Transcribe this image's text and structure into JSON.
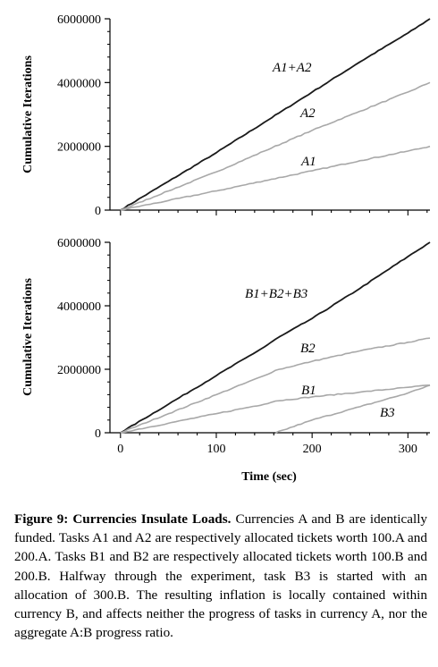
{
  "chart_data": [
    {
      "type": "line",
      "title": "",
      "xlabel": "",
      "ylabel": "Cumulative Iterations",
      "xlim": [
        -11,
        323
      ],
      "ylim": [
        0,
        6000000
      ],
      "yticks": [
        "0",
        "2000000",
        "4000000",
        "6000000"
      ],
      "show_x_tick_labels": false,
      "grid": false,
      "series": [
        {
          "name": "A1+A2",
          "color": "#1a1a1a",
          "x": [
            0,
            50,
            100,
            150,
            200,
            250,
            300,
            323
          ],
          "y": [
            0,
            900000,
            1800000,
            2750000,
            3700000,
            4650000,
            5550000,
            6000000
          ]
        },
        {
          "name": "A2",
          "color": "#a8a8a8",
          "x": [
            0,
            50,
            100,
            150,
            200,
            250,
            300,
            323
          ],
          "y": [
            0,
            600000,
            1200000,
            1850000,
            2500000,
            3100000,
            3700000,
            4000000
          ]
        },
        {
          "name": "A1",
          "color": "#a8a8a8",
          "x": [
            0,
            50,
            100,
            150,
            200,
            250,
            300,
            323
          ],
          "y": [
            0,
            300000,
            600000,
            920000,
            1230000,
            1550000,
            1850000,
            2000000
          ]
        }
      ],
      "annotations": [
        "A1+A2",
        "A2",
        "A1"
      ]
    },
    {
      "type": "line",
      "title": "",
      "xlabel": "Time (sec)",
      "ylabel": "Cumulative Iterations",
      "xlim": [
        -11,
        323
      ],
      "ylim": [
        0,
        6000000
      ],
      "xticks": [
        "0",
        "100",
        "200",
        "300"
      ],
      "yticks": [
        "0",
        "2000000",
        "4000000",
        "6000000"
      ],
      "grid": false,
      "series": [
        {
          "name": "B1+B2+B3",
          "color": "#1a1a1a",
          "x": [
            0,
            50,
            100,
            150,
            162,
            200,
            250,
            300,
            323
          ],
          "y": [
            0,
            900000,
            1800000,
            2700000,
            2950000,
            3600000,
            4550000,
            5550000,
            6000000
          ]
        },
        {
          "name": "B2",
          "color": "#a8a8a8",
          "x": [
            0,
            50,
            100,
            150,
            162,
            200,
            250,
            300,
            323
          ],
          "y": [
            0,
            600000,
            1200000,
            1800000,
            1970000,
            2250000,
            2580000,
            2850000,
            2980000
          ]
        },
        {
          "name": "B1",
          "color": "#a8a8a8",
          "x": [
            0,
            50,
            100,
            150,
            162,
            200,
            250,
            300,
            323
          ],
          "y": [
            0,
            300000,
            600000,
            900000,
            1000000,
            1130000,
            1280000,
            1430000,
            1500000
          ]
        },
        {
          "name": "B3",
          "color": "#a8a8a8",
          "x": [
            162,
            200,
            250,
            300,
            323
          ],
          "y": [
            0,
            400000,
            820000,
            1250000,
            1500000
          ]
        }
      ],
      "annotations": [
        "B1+B2+B3",
        "B2",
        "B1",
        "B3"
      ]
    }
  ],
  "caption": {
    "label": "Figure 9:",
    "title": "Currencies Insulate Loads.",
    "body": "Currencies A and B are identically funded. Tasks A1 and A2 are respectively allocated tickets worth 100.A and 200.A. Tasks B1 and B2 are respectively allocated tickets worth 100.B and 200.B. Halfway through the experiment, task B3 is started with an allocation of 300.B. The resulting inflation is locally contained within currency B, and affects neither the progress of tasks in currency A, nor the aggregate A:B progress ratio."
  }
}
